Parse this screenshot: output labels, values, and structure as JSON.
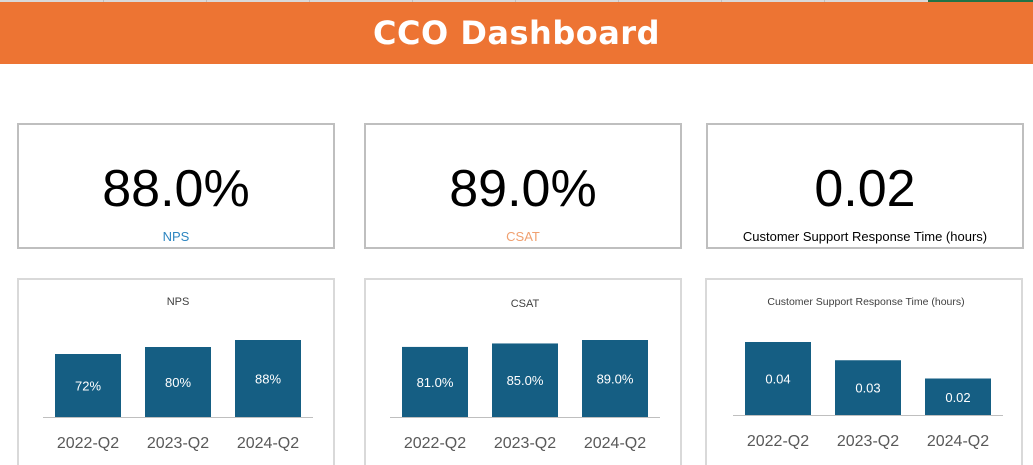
{
  "header": {
    "title": "CCO Dashboard",
    "color": "#ed7433"
  },
  "kpis": [
    {
      "value": "88.0%",
      "label": "NPS",
      "label_color": "#2e86c1"
    },
    {
      "value": "89.0%",
      "label": "CSAT",
      "label_color": "#f0a070"
    },
    {
      "value": "0.02",
      "label": "Customer Support Response Time (hours)",
      "label_color": "#000000"
    }
  ],
  "chart_data": [
    {
      "type": "bar",
      "title": "NPS",
      "categories": [
        "2022-Q2",
        "2023-Q2",
        "2024-Q2"
      ],
      "values": [
        72,
        80,
        88
      ],
      "data_labels": [
        "72%",
        "80%",
        "88%"
      ],
      "ylim": [
        0,
        100
      ],
      "bar_color": "#155e83"
    },
    {
      "type": "bar",
      "title": "CSAT",
      "categories": [
        "2022-Q2",
        "2023-Q2",
        "2024-Q2"
      ],
      "values": [
        81.0,
        85.0,
        89.0
      ],
      "data_labels": [
        "81.0%",
        "85.0%",
        "89.0%"
      ],
      "ylim": [
        0,
        100
      ],
      "bar_color": "#155e83"
    },
    {
      "type": "bar",
      "title": "Customer Support Response Time (hours)",
      "categories": [
        "2022-Q2",
        "2023-Q2",
        "2024-Q2"
      ],
      "values": [
        0.04,
        0.03,
        0.02
      ],
      "data_labels": [
        "0.04",
        "0.03",
        "0.02"
      ],
      "ylim": [
        0,
        0.045
      ],
      "bar_color": "#155e83"
    }
  ]
}
